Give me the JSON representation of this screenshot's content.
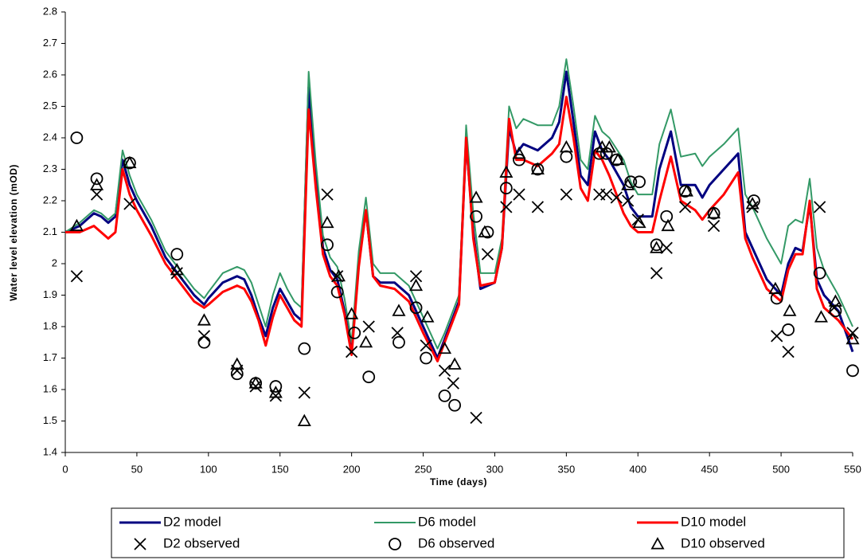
{
  "chart_data": {
    "type": "line",
    "x_label": "Time (days)",
    "y_label": "Water level elevation (mOD)",
    "xlim": [
      0,
      550
    ],
    "xticks": [
      0,
      50,
      100,
      150,
      200,
      250,
      300,
      350,
      400,
      450,
      500,
      550
    ],
    "ylim": [
      1.4,
      2.8
    ],
    "yticks": [
      1.4,
      1.5,
      1.6,
      1.7,
      1.8,
      1.9,
      2,
      2.1,
      2.2,
      2.3,
      2.4,
      2.5,
      2.6,
      2.7,
      2.8
    ],
    "grid": false,
    "x": [
      0,
      10,
      20,
      25,
      30,
      35,
      40,
      45,
      50,
      60,
      70,
      80,
      90,
      97,
      100,
      110,
      120,
      125,
      130,
      135,
      140,
      145,
      150,
      155,
      160,
      165,
      170,
      175,
      180,
      185,
      190,
      195,
      200,
      205,
      210,
      215,
      220,
      230,
      240,
      250,
      260,
      265,
      270,
      275,
      280,
      285,
      290,
      300,
      305,
      310,
      315,
      320,
      330,
      340,
      345,
      350,
      355,
      360,
      365,
      370,
      375,
      380,
      390,
      395,
      400,
      410,
      415,
      423,
      430,
      440,
      445,
      450,
      460,
      470,
      475,
      480,
      490,
      500,
      505,
      510,
      515,
      520,
      525,
      530,
      540,
      550
    ],
    "series": [
      {
        "name": "D2 model",
        "color": "#000080",
        "marker": "line",
        "values": [
          2.1,
          2.12,
          2.16,
          2.15,
          2.13,
          2.15,
          2.33,
          2.25,
          2.2,
          2.12,
          2.02,
          1.96,
          1.9,
          1.87,
          1.89,
          1.94,
          1.96,
          1.95,
          1.9,
          1.83,
          1.77,
          1.86,
          1.92,
          1.88,
          1.84,
          1.82,
          2.56,
          2.28,
          2.05,
          1.98,
          1.95,
          1.85,
          1.72,
          2.0,
          2.17,
          1.96,
          1.94,
          1.94,
          1.9,
          1.8,
          1.7,
          1.76,
          1.82,
          1.88,
          2.39,
          2.1,
          1.92,
          1.94,
          2.05,
          2.43,
          2.35,
          2.38,
          2.36,
          2.4,
          2.45,
          2.61,
          2.45,
          2.28,
          2.25,
          2.42,
          2.36,
          2.33,
          2.25,
          2.18,
          2.15,
          2.15,
          2.3,
          2.42,
          2.25,
          2.25,
          2.21,
          2.25,
          2.3,
          2.35,
          2.1,
          2.05,
          1.95,
          1.9,
          2.0,
          2.05,
          2.04,
          2.19,
          1.95,
          1.9,
          1.85,
          1.72
        ]
      },
      {
        "name": "D6 model",
        "color": "#339966",
        "marker": "line",
        "values": [
          2.1,
          2.13,
          2.17,
          2.16,
          2.14,
          2.16,
          2.36,
          2.28,
          2.22,
          2.14,
          2.04,
          1.98,
          1.92,
          1.89,
          1.91,
          1.97,
          1.99,
          1.98,
          1.94,
          1.87,
          1.8,
          1.9,
          1.97,
          1.92,
          1.88,
          1.86,
          2.61,
          2.32,
          2.09,
          2.02,
          1.99,
          1.89,
          1.75,
          2.04,
          2.21,
          2.0,
          1.97,
          1.97,
          1.93,
          1.83,
          1.73,
          1.78,
          1.84,
          1.9,
          2.44,
          2.16,
          1.97,
          1.97,
          2.08,
          2.5,
          2.43,
          2.46,
          2.44,
          2.44,
          2.5,
          2.65,
          2.5,
          2.33,
          2.3,
          2.47,
          2.42,
          2.4,
          2.33,
          2.26,
          2.22,
          2.22,
          2.38,
          2.49,
          2.34,
          2.35,
          2.31,
          2.34,
          2.38,
          2.43,
          2.22,
          2.18,
          2.08,
          2.0,
          2.12,
          2.14,
          2.13,
          2.27,
          2.05,
          1.98,
          1.9,
          1.8
        ]
      },
      {
        "name": "D10 model",
        "color": "#ff0000",
        "marker": "line",
        "values": [
          2.1,
          2.1,
          2.12,
          2.1,
          2.08,
          2.1,
          2.3,
          2.22,
          2.17,
          2.09,
          2.0,
          1.94,
          1.88,
          1.86,
          1.87,
          1.91,
          1.93,
          1.92,
          1.88,
          1.82,
          1.74,
          1.83,
          1.9,
          1.86,
          1.82,
          1.8,
          2.49,
          2.24,
          2.03,
          1.96,
          1.93,
          1.84,
          1.71,
          1.99,
          2.17,
          1.96,
          1.93,
          1.92,
          1.88,
          1.78,
          1.69,
          1.75,
          1.81,
          1.87,
          2.4,
          2.08,
          1.93,
          1.94,
          2.05,
          2.46,
          2.33,
          2.33,
          2.31,
          2.35,
          2.38,
          2.53,
          2.4,
          2.24,
          2.2,
          2.36,
          2.33,
          2.28,
          2.16,
          2.12,
          2.1,
          2.1,
          2.2,
          2.34,
          2.2,
          2.17,
          2.14,
          2.17,
          2.22,
          2.29,
          2.08,
          2.02,
          1.92,
          1.88,
          1.98,
          2.03,
          2.03,
          2.2,
          1.92,
          1.86,
          1.82,
          1.76
        ]
      },
      {
        "name": "D2 observed",
        "color": "#000000",
        "marker": "cross",
        "x": [
          8,
          22,
          45,
          78,
          97,
          120,
          133,
          147,
          167,
          183,
          190,
          200,
          212,
          232,
          245,
          252,
          265,
          271,
          287,
          295,
          308,
          317,
          330,
          350,
          373,
          378,
          385,
          393,
          400,
          413,
          420,
          433,
          453,
          480,
          497,
          505,
          527,
          537,
          550
        ],
        "values": [
          1.96,
          2.22,
          2.19,
          1.97,
          1.77,
          1.66,
          1.61,
          1.58,
          1.59,
          2.22,
          1.96,
          1.72,
          1.8,
          1.78,
          1.96,
          1.74,
          1.66,
          1.62,
          1.51,
          2.03,
          2.18,
          2.22,
          2.18,
          2.22,
          2.22,
          2.22,
          2.21,
          2.2,
          2.14,
          1.97,
          2.05,
          2.18,
          2.12,
          2.18,
          1.77,
          1.72,
          2.18,
          1.86,
          1.78
        ]
      },
      {
        "name": "D6 observed",
        "color": "#000000",
        "marker": "circle",
        "x": [
          8,
          22,
          45,
          78,
          97,
          120,
          133,
          147,
          167,
          183,
          190,
          202,
          212,
          233,
          245,
          252,
          265,
          272,
          287,
          295,
          308,
          317,
          330,
          350,
          373,
          378,
          385,
          395,
          401,
          413,
          420,
          433,
          453,
          481,
          497,
          505,
          527,
          538,
          550
        ],
        "values": [
          2.4,
          2.27,
          2.32,
          2.03,
          1.75,
          1.65,
          1.62,
          1.61,
          1.73,
          2.06,
          1.91,
          1.78,
          1.64,
          1.75,
          1.86,
          1.7,
          1.58,
          1.55,
          2.15,
          2.1,
          2.24,
          2.33,
          2.3,
          2.34,
          2.35,
          2.35,
          2.33,
          2.26,
          2.26,
          2.06,
          2.15,
          2.23,
          2.16,
          2.2,
          1.89,
          1.79,
          1.97,
          1.85,
          1.66
        ]
      },
      {
        "name": "D10 observed",
        "color": "#000000",
        "marker": "triangle",
        "x": [
          8,
          22,
          45,
          78,
          97,
          120,
          133,
          147,
          167,
          183,
          191,
          200,
          210,
          233,
          245,
          253,
          265,
          272,
          287,
          293,
          308,
          317,
          330,
          350,
          375,
          380,
          386,
          393,
          401,
          413,
          421,
          434,
          453,
          480,
          496,
          506,
          528,
          538,
          550
        ],
        "values": [
          2.12,
          2.25,
          2.32,
          1.98,
          1.82,
          1.68,
          1.62,
          1.59,
          1.5,
          2.13,
          1.96,
          1.84,
          1.75,
          1.85,
          1.93,
          1.83,
          1.73,
          1.68,
          2.21,
          2.1,
          2.29,
          2.35,
          2.3,
          2.37,
          2.37,
          2.37,
          2.33,
          2.25,
          2.13,
          2.05,
          2.12,
          2.23,
          2.16,
          2.19,
          1.92,
          1.85,
          1.83,
          1.88,
          1.76
        ]
      }
    ]
  }
}
